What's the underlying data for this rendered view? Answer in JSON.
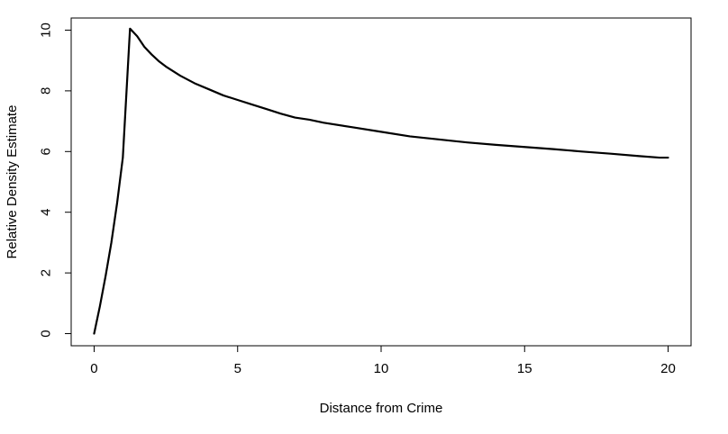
{
  "chart_data": {
    "type": "line",
    "title": "",
    "xlabel": "Distance from Crime",
    "ylabel": "Relative Density Estimate",
    "xlim": [
      -0.8,
      20.8
    ],
    "ylim": [
      -0.4,
      10.4
    ],
    "xticks": [
      0,
      5,
      10,
      15,
      20
    ],
    "yticks": [
      0,
      2,
      4,
      6,
      8,
      10
    ],
    "grid": false,
    "legend": "none",
    "line_color": "#000000",
    "series": [
      {
        "x": [
          0,
          0.2,
          0.4,
          0.6,
          0.8,
          1.0,
          1.25,
          1.5,
          1.75,
          2.0,
          2.25,
          2.5,
          3.0,
          3.5,
          4.0,
          4.5,
          5.0,
          5.5,
          6.0,
          6.5,
          7.0,
          7.5,
          8.0,
          9.0,
          10.0,
          11.0,
          12.0,
          13.0,
          14.0,
          15.0,
          16.0,
          17.0,
          18.0,
          19.0,
          19.7,
          20.0
        ],
        "y": [
          0,
          0.9,
          1.9,
          3.0,
          4.3,
          5.8,
          10.05,
          9.8,
          9.45,
          9.2,
          8.98,
          8.8,
          8.5,
          8.25,
          8.05,
          7.85,
          7.7,
          7.55,
          7.4,
          7.25,
          7.12,
          7.05,
          6.95,
          6.8,
          6.65,
          6.5,
          6.4,
          6.3,
          6.22,
          6.15,
          6.08,
          6.0,
          5.93,
          5.85,
          5.8,
          5.8
        ]
      }
    ]
  }
}
